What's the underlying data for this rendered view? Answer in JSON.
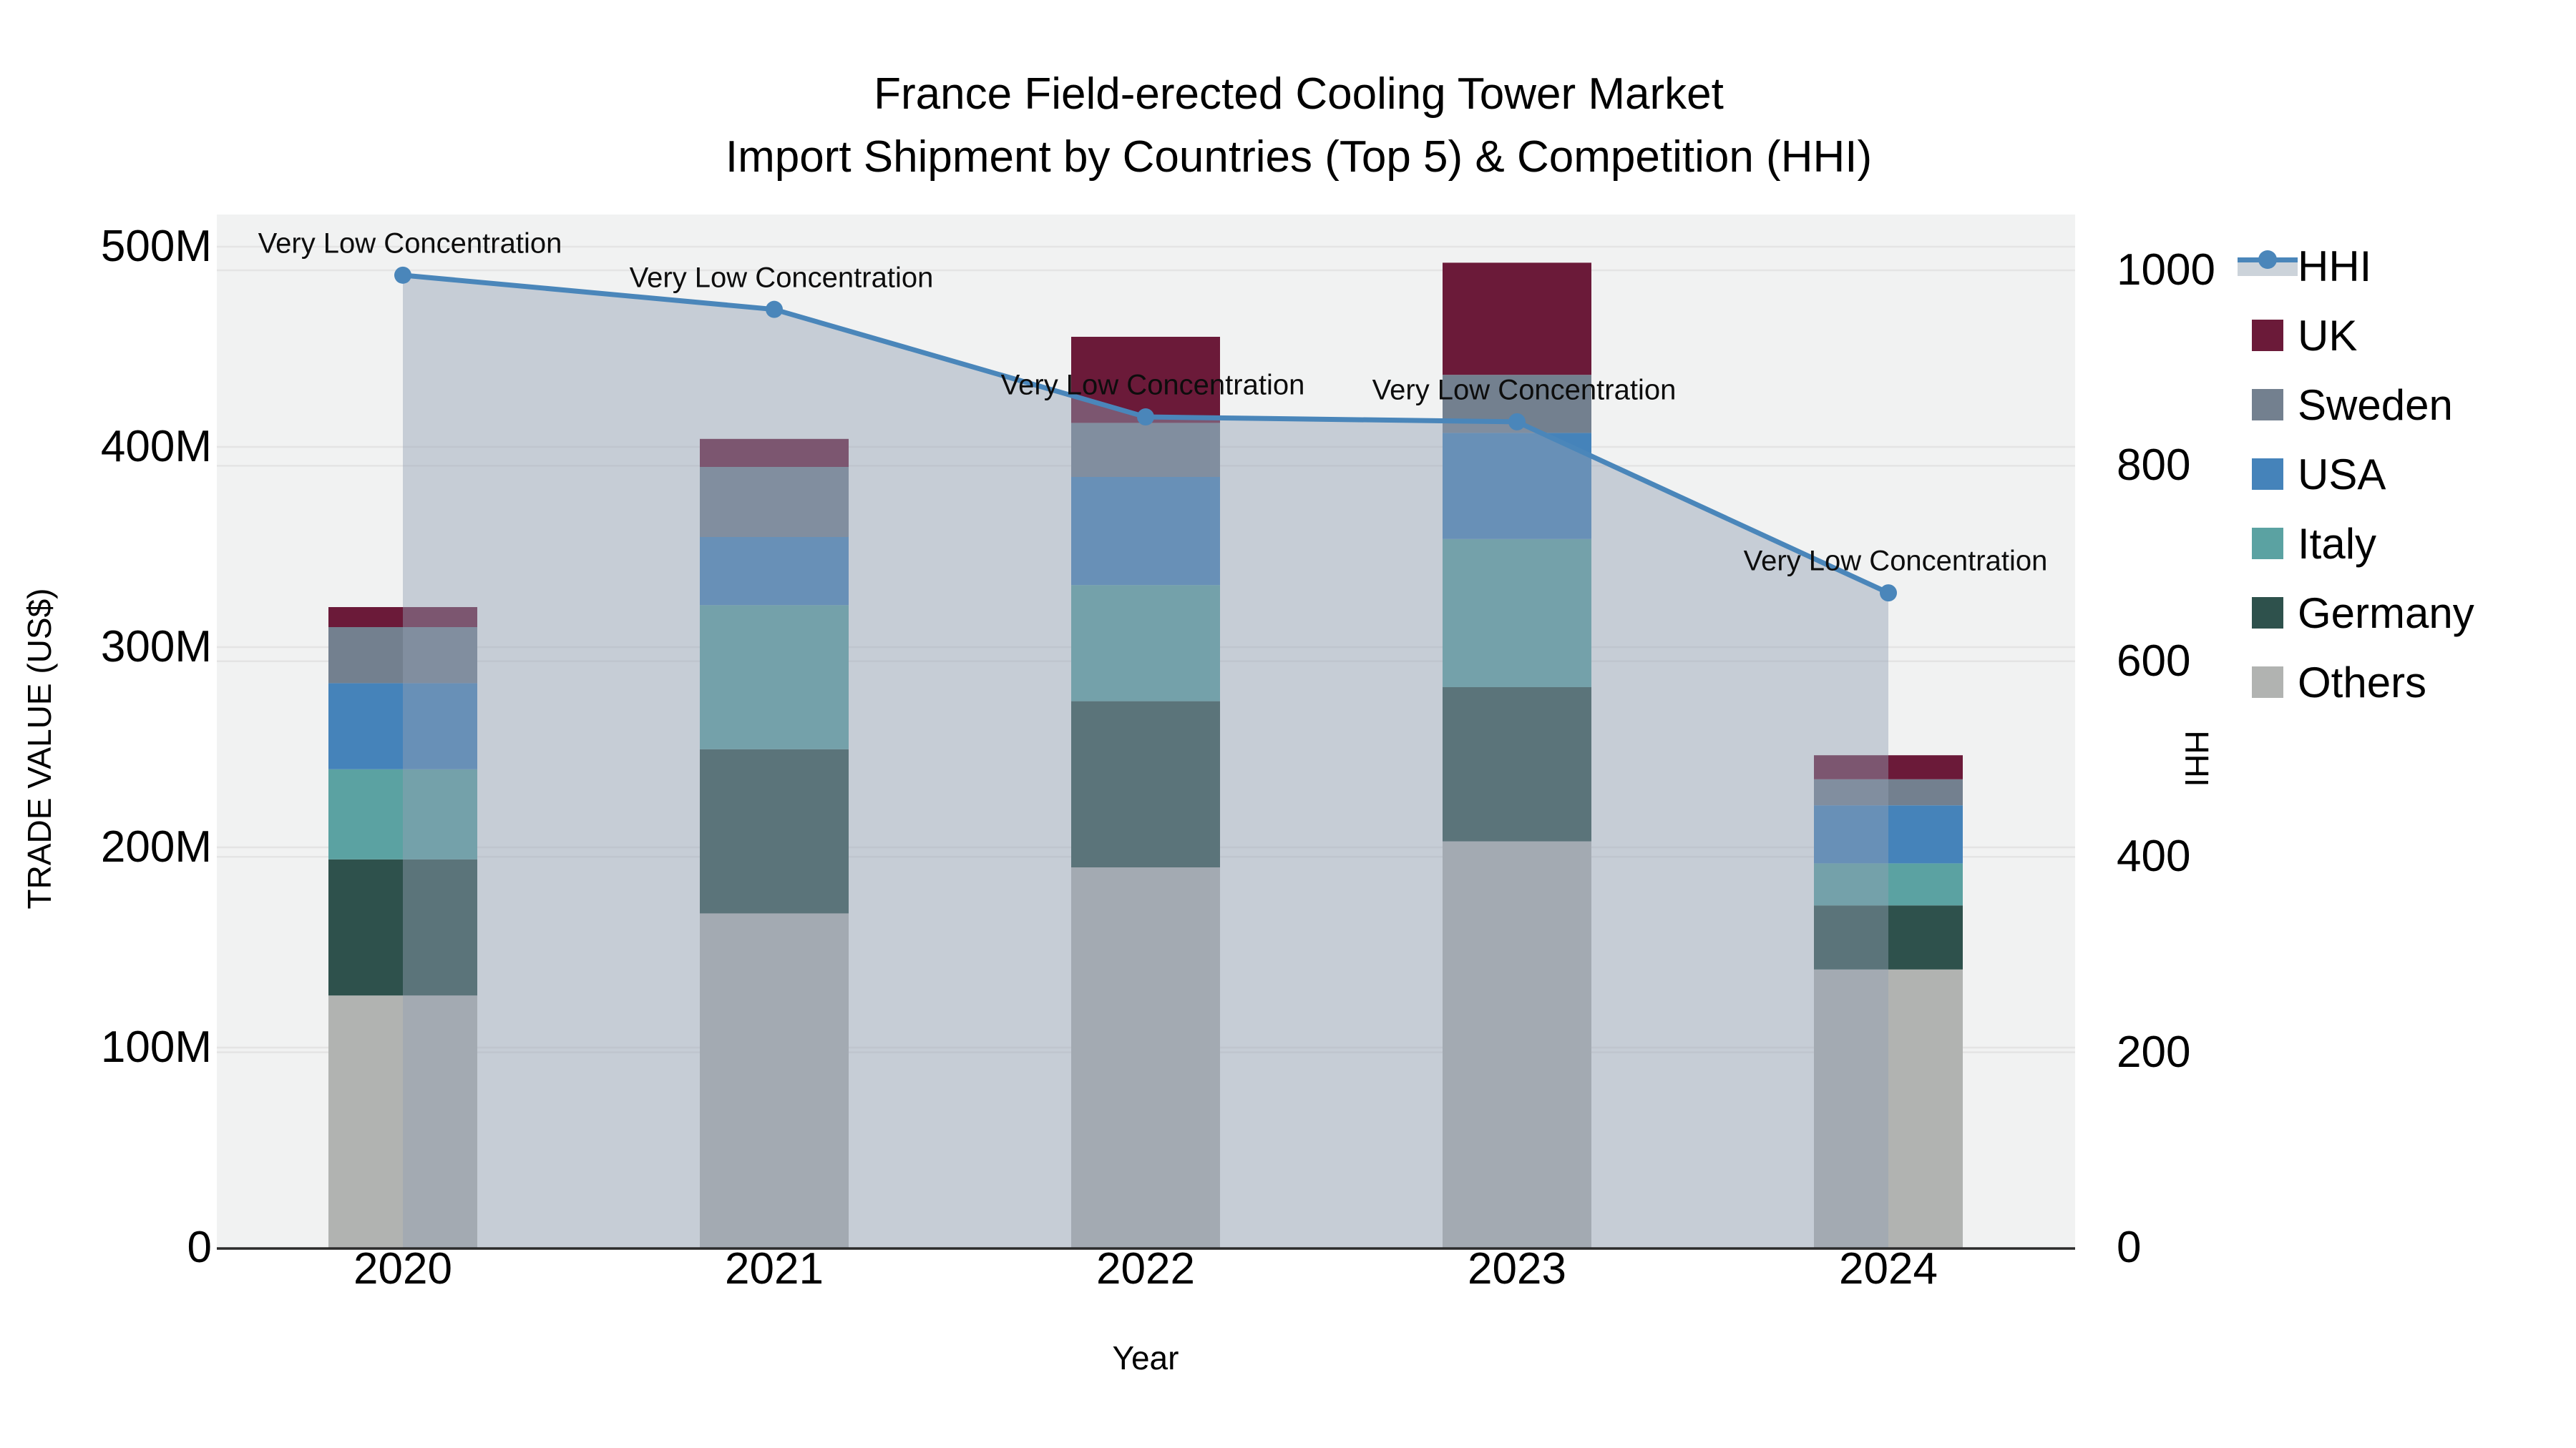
{
  "title": {
    "line1": "France Field-erected Cooling Tower Market",
    "line2": "Import Shipment by Countries (Top 5) & Competition (HHI)"
  },
  "axes": {
    "x_title": "Year",
    "y_left_title": "TRADE VALUE (US$)",
    "y_right_title": "HHI",
    "y_left_tick_labels": [
      "0",
      "100M",
      "200M",
      "300M",
      "400M",
      "500M"
    ],
    "y_left_tick_values": [
      0,
      100,
      200,
      300,
      400,
      500
    ],
    "y_right_tick_labels": [
      "0",
      "200",
      "400",
      "600",
      "800",
      "1000"
    ],
    "y_right_tick_values": [
      0,
      200,
      400,
      600,
      800,
      1000
    ]
  },
  "chart_data": {
    "type": [
      "bar",
      "line"
    ],
    "title": "France Field-erected Cooling Tower Market",
    "subtitle": "Import Shipment by Countries (Top 5) & Competition (HHI)",
    "xlabel": "Year",
    "ylabel": "TRADE VALUE (US$)",
    "ylabel2": "HHI",
    "categories": [
      "2020",
      "2021",
      "2022",
      "2023",
      "2024"
    ],
    "bar_value_unit": "million US$",
    "bar_stack_order_bottom_to_top": [
      "Others",
      "Germany",
      "Italy",
      "USA",
      "Sweden",
      "UK"
    ],
    "series": [
      {
        "name": "Others",
        "color": "#b1b3b1",
        "values": [
          126,
          167,
          190,
          203,
          139
        ]
      },
      {
        "name": "Germany",
        "color": "#2e514c",
        "values": [
          68,
          82,
          83,
          77,
          32
        ]
      },
      {
        "name": "Italy",
        "color": "#5ba2a2",
        "values": [
          45,
          72,
          58,
          74,
          21
        ]
      },
      {
        "name": "USA",
        "color": "#4583ba",
        "values": [
          43,
          34,
          54,
          53,
          29
        ]
      },
      {
        "name": "Sweden",
        "color": "#73808f",
        "values": [
          28,
          35,
          27,
          29,
          13
        ]
      },
      {
        "name": "UK",
        "color": "#6b1a39",
        "values": [
          10,
          14,
          43,
          56,
          12
        ]
      }
    ],
    "bar_totals": [
      320,
      404,
      455,
      492,
      246
    ],
    "line_series": {
      "name": "HHI",
      "axis": "right",
      "color": "#4a86ba",
      "fill_color": "rgba(146,159,179,0.45)",
      "values": [
        995,
        960,
        850,
        845,
        670
      ]
    },
    "annotations": [
      "Very Low Concentration",
      "Very Low Concentration",
      "Very Low Concentration",
      "Very Low Concentration",
      "Very Low Concentration"
    ],
    "ylim_left": [
      0,
      518
    ],
    "ylim_right": [
      0,
      1060
    ],
    "grid": true,
    "legend_position": "right"
  },
  "legend": {
    "order": [
      "HHI",
      "UK",
      "Sweden",
      "USA",
      "Italy",
      "Germany",
      "Others"
    ],
    "hhi_band_color": "#ccd3da"
  }
}
